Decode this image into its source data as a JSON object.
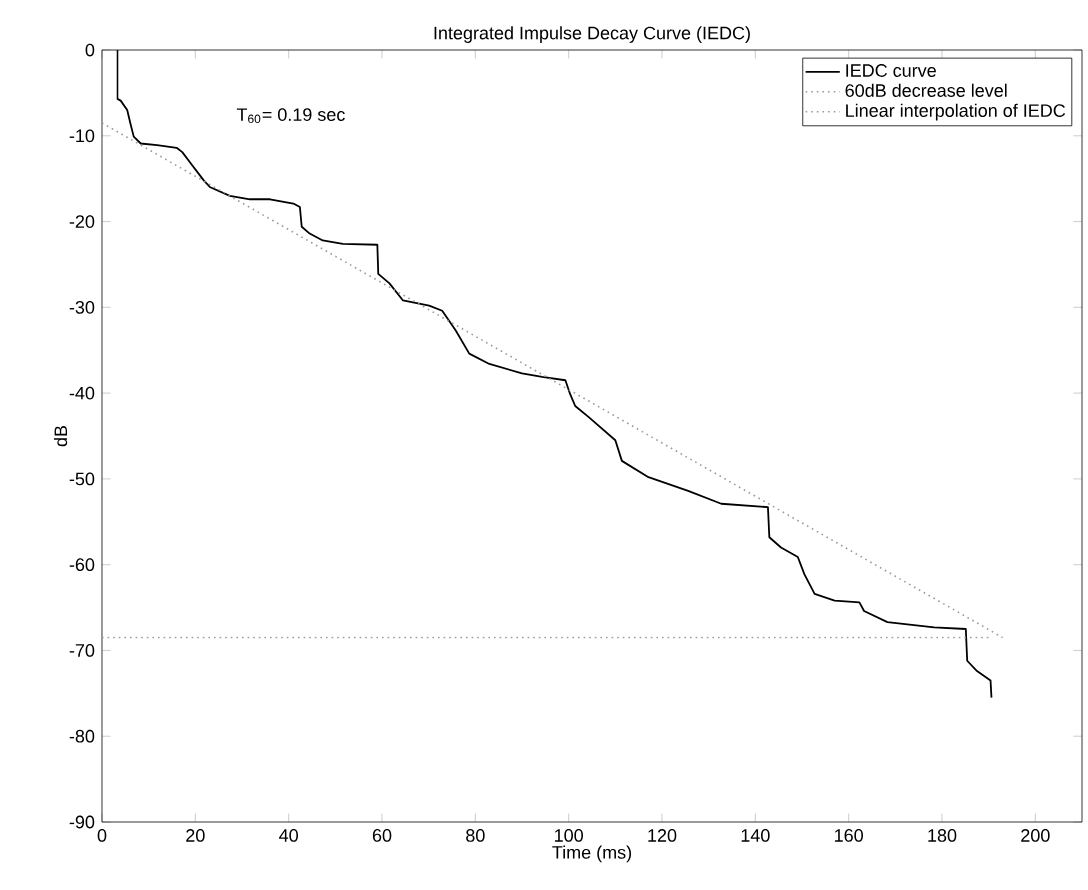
{
  "chart_data": {
    "type": "line",
    "title": "Integrated Impulse Decay Curve (IEDC)",
    "xlabel": "Time (ms)",
    "ylabel": "dB",
    "xlim": [
      0,
      210
    ],
    "ylim": [
      -90,
      0
    ],
    "xticks": [
      0,
      20,
      40,
      60,
      80,
      100,
      120,
      140,
      160,
      180,
      200
    ],
    "yticks": [
      -90,
      -80,
      -70,
      -60,
      -50,
      -40,
      -30,
      -20,
      -10,
      0
    ],
    "grid": false,
    "legend": "top right",
    "marker": "none",
    "annotations": [
      "T$_{60}$= 0.19 sec"
    ],
    "series": [
      {
        "name": "IEDC curve",
        "color": "#000000",
        "line_style": "solid",
        "x": [
          3.3,
          3.3,
          4,
          5.4,
          6.1,
          6.8,
          8.3,
          11.8,
          16,
          17.2,
          19,
          21.8,
          23.2,
          27.4,
          31.7,
          36,
          41,
          42.4,
          42.8,
          44.5,
          47.3,
          51.6,
          59,
          59.2,
          61.6,
          64.5,
          70.1,
          72.9,
          75.8,
          78.7,
          83,
          90,
          94.3,
          99.3,
          100.3,
          101.4,
          104.3,
          110,
          111.4,
          117.1,
          125.6,
          132.7,
          142.7,
          143,
          145.5,
          149.1,
          150.5,
          152.7,
          157,
          162.3,
          163.3,
          168.3,
          178.3,
          185.1,
          185.4,
          187.5,
          190.4,
          190.6
        ],
        "values": [
          0,
          -5.7,
          -5.9,
          -7,
          -8.6,
          -10.1,
          -10.9,
          -11.1,
          -11.4,
          -11.9,
          -13.2,
          -15.2,
          -16,
          -17,
          -17.4,
          -17.4,
          -17.9,
          -18.3,
          -20.6,
          -21.4,
          -22.2,
          -22.6,
          -22.7,
          -26.1,
          -27.2,
          -29.2,
          -29.8,
          -30.4,
          -32.7,
          -35.4,
          -36.6,
          -37.7,
          -38.1,
          -38.5,
          -40.1,
          -41.5,
          -42.8,
          -45.5,
          -47.9,
          -49.8,
          -51.4,
          -52.9,
          -53.3,
          -56.8,
          -58,
          -59.1,
          -61.1,
          -63.4,
          -64.2,
          -64.4,
          -65.4,
          -66.7,
          -67.3,
          -67.5,
          -71.2,
          -72.4,
          -73.5,
          -75.5
        ]
      },
      {
        "name": "60dB decrease level",
        "color": "#999999",
        "line_style": "dotted",
        "x": [
          0,
          190
        ],
        "values": [
          -68.5,
          -68.5
        ]
      },
      {
        "name": "Linear interpolation of IEDC",
        "color": "#999999",
        "line_style": "dotted",
        "x": [
          0,
          193
        ],
        "values": [
          -8.5,
          -68.5
        ]
      }
    ]
  }
}
